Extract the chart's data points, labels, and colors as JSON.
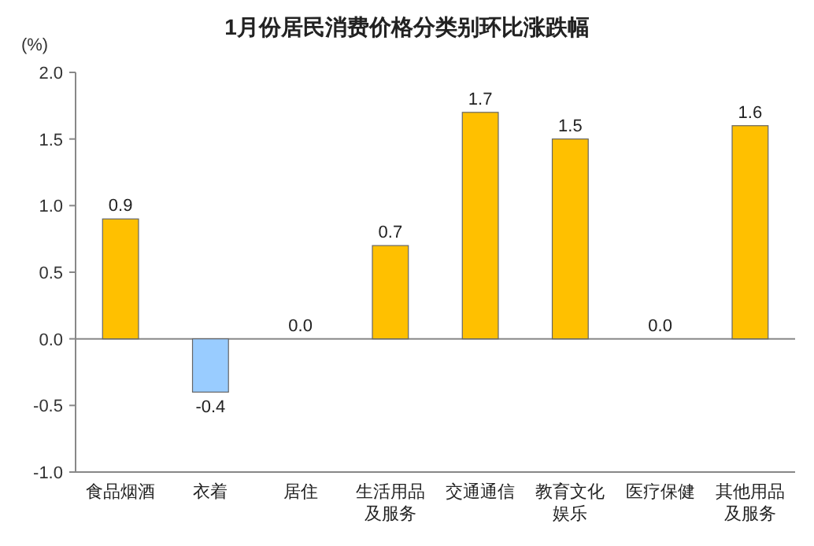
{
  "chart_data": {
    "type": "bar",
    "title": "1月份居民消费价格分类别环比涨跌幅",
    "ylabel": "(%)",
    "categories": [
      "食品烟酒",
      "衣着",
      "居住",
      "生活用品及服务",
      "交通通信",
      "教育文化娱乐",
      "医疗保健",
      "其他用品及服务"
    ],
    "values": [
      0.9,
      -0.4,
      0.0,
      0.7,
      1.7,
      1.5,
      0.0,
      1.6
    ],
    "yticks": [
      {
        "value": 2.0,
        "label": "2.0"
      },
      {
        "value": 1.5,
        "label": "1.5"
      },
      {
        "value": 1.0,
        "label": "1.0"
      },
      {
        "value": 0.5,
        "label": "0.5"
      },
      {
        "value": 0.0,
        "label": "0.0"
      },
      {
        "value": -0.5,
        "label": "-0.5"
      },
      {
        "value": -1.0,
        "label": "-1.0"
      }
    ],
    "value_labels": [
      "0.9",
      "-0.4",
      "0.0",
      "0.7",
      "1.7",
      "1.5",
      "0.0",
      "1.6"
    ],
    "colors": [
      "#ffc000",
      "#99ccff",
      "#ffc000",
      "#ffc000",
      "#ffc000",
      "#ffc000",
      "#ffc000",
      "#ffc000"
    ],
    "ylim": [
      -1.0,
      2.0
    ]
  }
}
